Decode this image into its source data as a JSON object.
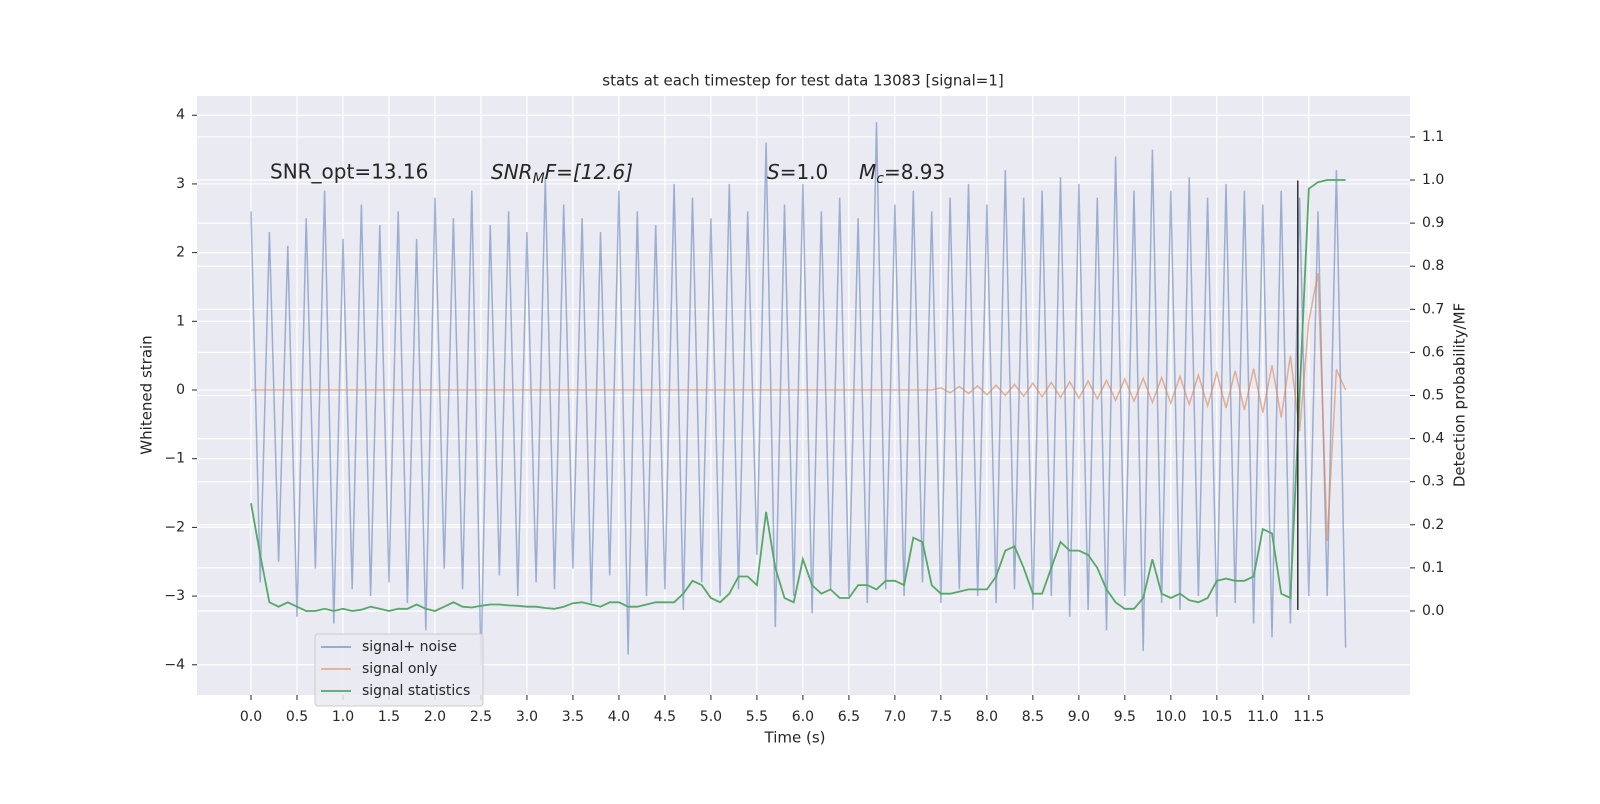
{
  "chart_data": {
    "type": "line",
    "title": "stats at each timestep for test data 13083 [signal=1]",
    "xlabel": "Time (s)",
    "ylabel": "Whitened strain",
    "y2label": "Detection probability/MF",
    "x": [
      0.0,
      0.1,
      0.2,
      0.3,
      0.4,
      0.5,
      0.6,
      0.7,
      0.8,
      0.9,
      1.0,
      1.1,
      1.2,
      1.3,
      1.4,
      1.5,
      1.6,
      1.7,
      1.8,
      1.9,
      2.0,
      2.1,
      2.2,
      2.3,
      2.4,
      2.5,
      2.6,
      2.7,
      2.8,
      2.9,
      3.0,
      3.1,
      3.2,
      3.3,
      3.4,
      3.5,
      3.6,
      3.7,
      3.8,
      3.9,
      4.0,
      4.1,
      4.2,
      4.3,
      4.4,
      4.5,
      4.6,
      4.7,
      4.8,
      4.9,
      5.0,
      5.1,
      5.2,
      5.3,
      5.4,
      5.5,
      5.6,
      5.7,
      5.8,
      5.9,
      6.0,
      6.1,
      6.2,
      6.3,
      6.4,
      6.5,
      6.6,
      6.7,
      6.8,
      6.9,
      7.0,
      7.1,
      7.2,
      7.3,
      7.4,
      7.5,
      7.6,
      7.7,
      7.8,
      7.9,
      8.0,
      8.1,
      8.2,
      8.3,
      8.4,
      8.5,
      8.6,
      8.7,
      8.8,
      8.9,
      9.0,
      9.1,
      9.2,
      9.3,
      9.4,
      9.5,
      9.6,
      9.7,
      9.8,
      9.9,
      10.0,
      10.1,
      10.2,
      10.3,
      10.4,
      10.5,
      10.6,
      10.7,
      10.8,
      10.9,
      11.0,
      11.1,
      11.2,
      11.3,
      11.4,
      11.5,
      11.6,
      11.7,
      11.8,
      11.9
    ],
    "series": [
      {
        "name": "signal+ noise",
        "color": "#4c72b0",
        "axis": "y",
        "values": [
          2.6,
          -2.8,
          2.3,
          -2.5,
          2.1,
          -3.3,
          2.5,
          -2.6,
          2.9,
          -3.4,
          2.2,
          -2.9,
          2.7,
          -3.0,
          2.4,
          -2.8,
          2.6,
          -3.1,
          2.2,
          -3.5,
          2.8,
          -2.6,
          2.5,
          -2.9,
          2.9,
          -4.0,
          2.4,
          -2.7,
          2.6,
          -3.0,
          2.3,
          -2.8,
          3.1,
          -2.9,
          2.7,
          -2.6,
          2.5,
          -3.1,
          2.3,
          -2.7,
          2.9,
          -3.85,
          2.6,
          -3.0,
          2.4,
          -2.9,
          3.0,
          -3.2,
          2.8,
          -2.8,
          2.5,
          -3.0,
          3.0,
          -2.9,
          2.6,
          -2.4,
          3.6,
          -3.45,
          2.7,
          -3.0,
          3.0,
          -3.25,
          2.6,
          -2.9,
          2.8,
          -3.0,
          2.5,
          -3.1,
          3.9,
          -2.9,
          2.7,
          -3.0,
          2.9,
          -2.8,
          2.6,
          -3.1,
          2.8,
          -2.9,
          3.0,
          -3.0,
          2.7,
          -3.1,
          3.2,
          -2.9,
          2.8,
          -3.2,
          2.9,
          -3.0,
          3.1,
          -3.3,
          3.0,
          -3.2,
          2.8,
          -3.5,
          3.4,
          -3.0,
          2.9,
          -3.8,
          3.5,
          -3.1,
          2.9,
          -3.2,
          3.1,
          -3.0,
          2.8,
          -3.3,
          3.0,
          -3.1,
          2.9,
          -3.4,
          2.7,
          -3.6,
          2.9,
          -3.4,
          2.8,
          -3.0,
          2.6,
          -3.0,
          3.2,
          -3.75
        ]
      },
      {
        "name": "signal only",
        "color": "#dd8452",
        "axis": "y",
        "values": [
          0,
          0,
          0,
          0,
          0,
          0,
          0,
          0,
          0,
          0,
          0,
          0,
          0,
          0,
          0,
          0,
          0,
          0,
          0,
          0,
          0,
          0,
          0,
          0,
          0,
          0,
          0,
          0,
          0,
          0,
          0,
          0,
          0,
          0,
          0,
          0,
          0,
          0,
          0,
          0,
          0,
          0,
          0,
          0,
          0,
          0,
          0,
          0,
          0,
          0,
          0,
          0,
          0,
          0,
          0,
          0,
          0,
          0,
          0,
          0,
          0,
          0,
          0,
          0,
          0,
          0,
          0,
          0,
          0,
          0,
          0,
          0,
          0,
          0,
          0,
          0.03,
          -0.04,
          0.05,
          -0.05,
          0.06,
          -0.07,
          0.07,
          -0.08,
          0.08,
          -0.09,
          0.1,
          -0.1,
          0.11,
          -0.11,
          0.12,
          -0.12,
          0.13,
          -0.13,
          0.14,
          -0.15,
          0.16,
          -0.16,
          0.17,
          -0.18,
          0.18,
          -0.19,
          0.2,
          -0.21,
          0.22,
          -0.23,
          0.25,
          -0.26,
          0.28,
          -0.29,
          0.31,
          -0.33,
          0.36,
          -0.4,
          0.5,
          -0.6,
          1.0,
          1.7,
          -2.2,
          0.3,
          0.0
        ]
      },
      {
        "name": "signal statistics",
        "color": "#55a868",
        "axis": "y2",
        "values": [
          0.25,
          0.13,
          0.02,
          0.01,
          0.02,
          0.01,
          0.0,
          0.0,
          0.005,
          0.0,
          0.005,
          0.0,
          0.003,
          0.01,
          0.005,
          0.0,
          0.005,
          0.005,
          0.015,
          0.005,
          0.0,
          0.01,
          0.02,
          0.01,
          0.008,
          0.012,
          0.015,
          0.015,
          0.013,
          0.012,
          0.01,
          0.01,
          0.007,
          0.005,
          0.01,
          0.018,
          0.02,
          0.015,
          0.01,
          0.02,
          0.02,
          0.01,
          0.01,
          0.015,
          0.02,
          0.02,
          0.02,
          0.04,
          0.07,
          0.06,
          0.03,
          0.02,
          0.04,
          0.08,
          0.08,
          0.06,
          0.23,
          0.1,
          0.03,
          0.02,
          0.12,
          0.06,
          0.04,
          0.05,
          0.03,
          0.03,
          0.06,
          0.06,
          0.05,
          0.07,
          0.07,
          0.06,
          0.17,
          0.16,
          0.06,
          0.04,
          0.04,
          0.045,
          0.05,
          0.05,
          0.05,
          0.08,
          0.14,
          0.15,
          0.1,
          0.04,
          0.04,
          0.1,
          0.16,
          0.14,
          0.14,
          0.13,
          0.1,
          0.05,
          0.02,
          0.005,
          0.005,
          0.03,
          0.12,
          0.04,
          0.03,
          0.04,
          0.025,
          0.02,
          0.03,
          0.07,
          0.075,
          0.07,
          0.07,
          0.08,
          0.19,
          0.18,
          0.04,
          0.03,
          0.5,
          0.98,
          0.995,
          1.0,
          1.0,
          1.0
        ]
      }
    ],
    "vline_x": 11.38,
    "vline_y": [
      -3.2,
      3.05
    ],
    "xlim": [
      -0.587,
      12.6
    ],
    "xticks": [
      {
        "value": 0,
        "label": "0.0"
      },
      0.5,
      {
        "value": 1,
        "label": "1.0"
      },
      1.5,
      {
        "value": 2,
        "label": "2.0"
      },
      2.5,
      {
        "value": 3,
        "label": "3.0"
      },
      3.5,
      {
        "value": 4,
        "label": "4.0"
      },
      4.5,
      {
        "value": 5,
        "label": "5.0"
      },
      5.5,
      {
        "value": 6,
        "label": "6.0"
      },
      6.5,
      {
        "value": 7,
        "label": "7.0"
      },
      7.5,
      {
        "value": 8,
        "label": "8.0"
      },
      8.5,
      {
        "value": 9,
        "label": "9.0"
      },
      9.5,
      {
        "value": 10,
        "label": "10.0"
      },
      10.5,
      {
        "value": 11,
        "label": "11.0"
      },
      11.5
    ],
    "ylim": [
      -4.44,
      4.28
    ],
    "yticks": [
      {
        "value": -4,
        "label": "−4"
      },
      {
        "value": -3,
        "label": "−3"
      },
      {
        "value": -2,
        "label": "−2"
      },
      {
        "value": -1,
        "label": "−1"
      },
      0,
      1,
      2,
      3,
      4
    ],
    "y2lim": [
      -0.195,
      1.195
    ],
    "y2ticks": [
      {
        "value": 0,
        "label": "0.0"
      },
      0.1,
      0.2,
      0.3,
      0.4,
      0.5,
      0.6,
      0.7,
      0.8,
      0.9,
      {
        "value": 1,
        "label": "1.0"
      },
      1.1
    ],
    "annotations": [
      "SNR_opt=13.16",
      {
        "math": "SNR",
        "sub": "M",
        "text": "F=[12.6]"
      },
      {
        "math": "S",
        "text": "=1.0"
      },
      {
        "math": "M",
        "sub": "c",
        "text": "=8.93"
      }
    ],
    "grid": true,
    "legend": "lower left"
  }
}
